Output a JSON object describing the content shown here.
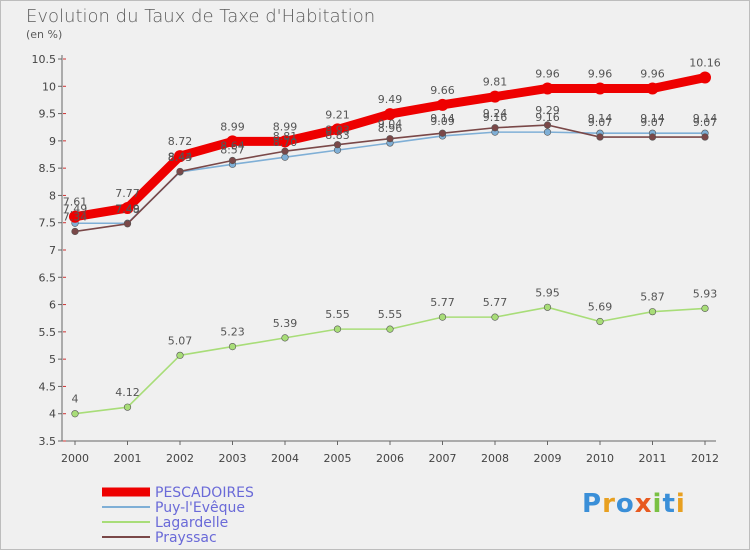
{
  "title": "Evolution du Taux de Taxe d'Habitation",
  "subtitle": "(en %)",
  "logo": {
    "letters": [
      "P",
      "r",
      "o",
      "x",
      "i",
      "t",
      "i"
    ],
    "colors": [
      "#3a8fd8",
      "#e8a020",
      "#3a8fd8",
      "#e85a20",
      "#7ac143",
      "#3a8fd8",
      "#e8a020"
    ]
  },
  "chart_data": {
    "type": "line",
    "title": "Evolution du Taux de Taxe d'Habitation",
    "ylabel": "(en %)",
    "x": [
      "2000",
      "2001",
      "2002",
      "2003",
      "2004",
      "2005",
      "2006",
      "2007",
      "2008",
      "2009",
      "2010",
      "2011",
      "2012"
    ],
    "yticks": [
      "3.5",
      "4",
      "4.5",
      "5",
      "5.5",
      "6",
      "6.5",
      "7",
      "7.5",
      "8",
      "8.5",
      "9",
      "9.5",
      "10",
      "10.5"
    ],
    "ylim": [
      3.5,
      10.5
    ],
    "grid": false,
    "legend_position": "bottom-left",
    "series": [
      {
        "name": "PESCADOIRES",
        "color": "#ee0000",
        "values": [
          7.61,
          7.77,
          8.72,
          8.99,
          8.99,
          9.21,
          9.49,
          9.66,
          9.81,
          9.96,
          9.96,
          9.96,
          10.16
        ],
        "labels": [
          "7.61",
          "7.77",
          "8.72",
          "8.99",
          "8.99",
          "9.21",
          "9.49",
          "9.66",
          "9.81",
          "9.96",
          "9.96",
          "9.96",
          "10.16"
        ]
      },
      {
        "name": "Puy-l'Evêque",
        "color": "#7fafd6",
        "values": [
          7.49,
          7.49,
          8.43,
          8.57,
          8.7,
          8.83,
          8.96,
          9.09,
          9.16,
          9.16,
          9.14,
          9.14,
          9.14
        ],
        "labels": [
          "7.49",
          "7.49",
          "8.43",
          "8.57",
          "8.70",
          "8.83",
          "8.96",
          "9.09",
          "9.16",
          "9.16",
          "9.14",
          "9.14",
          "9.14"
        ]
      },
      {
        "name": "Lagardelle",
        "color": "#a8dd78",
        "values": [
          4.0,
          4.12,
          5.07,
          5.23,
          5.39,
          5.55,
          5.55,
          5.77,
          5.77,
          5.95,
          5.69,
          5.87,
          5.93
        ],
        "labels": [
          "4",
          "4.12",
          "5.07",
          "5.23",
          "5.39",
          "5.55",
          "5.55",
          "5.77",
          "5.77",
          "5.95",
          "5.69",
          "5.87",
          "5.93"
        ]
      },
      {
        "name": "Prayssac",
        "color": "#7a4848",
        "values": [
          7.34,
          7.48,
          8.44,
          8.64,
          8.81,
          8.93,
          9.04,
          9.14,
          9.24,
          9.29,
          9.07,
          9.07,
          9.07
        ],
        "labels": [
          "7.34",
          "7.48",
          "8.44",
          "8.64",
          "8.81",
          "8.93",
          "9.04",
          "9.14",
          "9.24",
          "9.29",
          "9.07",
          "9.07",
          "9.07"
        ]
      }
    ]
  }
}
